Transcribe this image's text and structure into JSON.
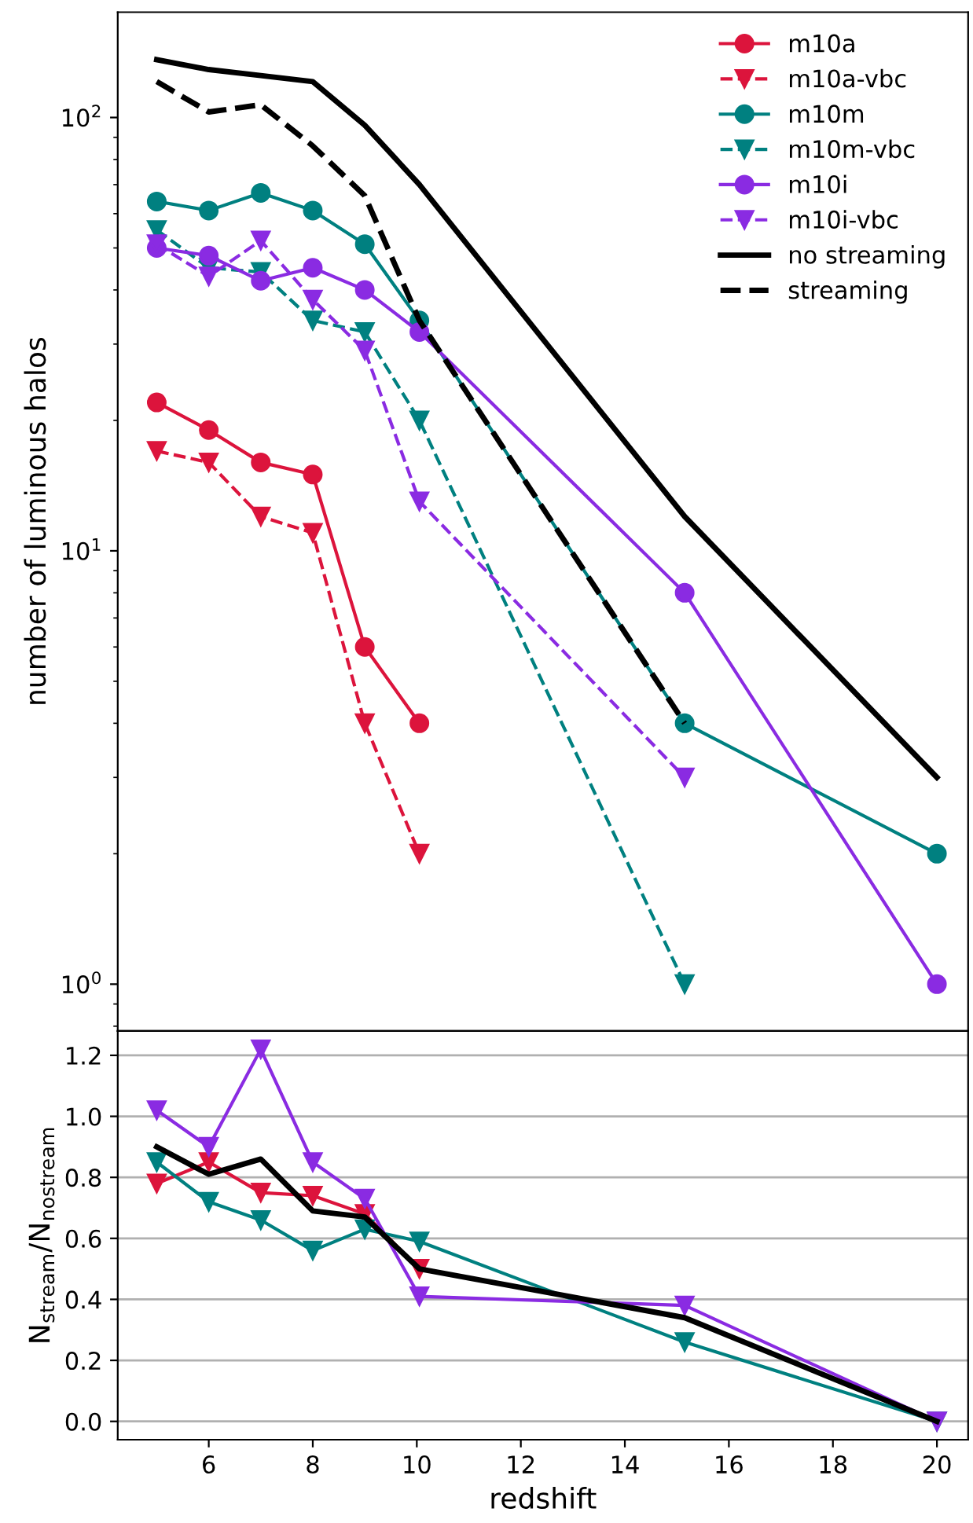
{
  "chart_data": [
    {
      "type": "line",
      "ylabel": "number of luminous halos",
      "log": "y",
      "x": [
        5,
        6,
        7,
        8,
        9,
        10.05,
        15.15,
        20
      ],
      "xlim": [
        4.25,
        20.6
      ],
      "xticks": [
        6,
        8,
        10,
        12,
        14,
        16,
        18,
        20
      ],
      "ylim": [
        0.78,
        175
      ],
      "yticks": [
        {
          "value": 1,
          "label": "10$^{0}$"
        },
        {
          "value": 10,
          "label": "10$^{1}$"
        },
        {
          "value": 100,
          "label": "10$^{2}$"
        }
      ],
      "tick_labels": "y",
      "grid": false,
      "legend": "top right",
      "series": [
        {
          "name": "m10a",
          "color": "#dc143c",
          "marker": "circle",
          "line_style": "solid",
          "values": [
            22,
            19,
            16,
            15,
            6,
            4,
            null,
            null
          ]
        },
        {
          "name": "m10a-vbc",
          "color": "#dc143c",
          "marker": "triangle",
          "line_style": "dashed",
          "values": [
            17,
            16,
            12,
            11,
            4,
            2,
            null,
            null
          ]
        },
        {
          "name": "m10m",
          "color": "#008080",
          "marker": "circle",
          "line_style": "solid",
          "values": [
            64,
            61,
            67,
            61,
            51,
            34,
            4,
            2
          ]
        },
        {
          "name": "m10m-vbc",
          "color": "#008080",
          "marker": "triangle",
          "line_style": "dashed",
          "values": [
            55,
            45,
            44,
            34,
            32,
            20,
            1,
            null
          ]
        },
        {
          "name": "m10i",
          "color": "#8a2be2",
          "marker": "circle",
          "line_style": "solid",
          "values": [
            50,
            48,
            42,
            45,
            40,
            32,
            8,
            1
          ]
        },
        {
          "name": "m10i-vbc",
          "color": "#8a2be2",
          "marker": "triangle",
          "line_style": "dashed",
          "values": [
            51,
            43,
            52,
            38,
            29,
            13,
            3,
            null
          ]
        },
        {
          "name": "no streaming",
          "color": "#000000",
          "marker": "none",
          "line_style": "solid",
          "values": [
            136,
            129,
            125,
            121,
            96,
            70,
            12,
            3
          ]
        },
        {
          "name": "streaming",
          "color": "#000000",
          "marker": "none",
          "line_style": "dashed",
          "values": [
            121,
            103,
            107,
            86,
            66,
            34,
            4,
            null
          ]
        }
      ]
    },
    {
      "type": "line",
      "xlabel": "redshift",
      "ylabel": "N$_{stream}$/N$_{nostream}$",
      "x": [
        5,
        6,
        7,
        8,
        9,
        10.05,
        15.15,
        20
      ],
      "xlim": [
        4.25,
        20.6
      ],
      "xticks": [
        6,
        8,
        10,
        12,
        14,
        16,
        18,
        20
      ],
      "ylim": [
        -0.06,
        1.28
      ],
      "yticks": [
        {
          "value": 0,
          "label": "0.0"
        },
        0.2,
        0.4,
        0.6,
        0.8,
        {
          "value": 1,
          "label": "1.0"
        },
        1.2
      ],
      "grid": "y",
      "legend": false,
      "series": [
        {
          "color": "#dc143c",
          "marker": "triangle",
          "line_style": "solid",
          "values": [
            0.78,
            0.85,
            0.75,
            0.74,
            0.68,
            0.5,
            null,
            null
          ]
        },
        {
          "color": "#008080",
          "marker": "triangle",
          "line_style": "solid",
          "values": [
            0.85,
            0.72,
            0.66,
            0.56,
            0.63,
            0.59,
            0.26,
            0
          ]
        },
        {
          "color": "#8a2be2",
          "marker": "triangle",
          "line_style": "solid",
          "values": [
            1.02,
            0.9,
            1.22,
            0.85,
            0.73,
            0.41,
            0.38,
            0
          ]
        },
        {
          "color": "#000000",
          "marker": "none",
          "line_style": "solid",
          "values": [
            0.9,
            0.81,
            0.86,
            0.69,
            0.67,
            0.5,
            0.34,
            0
          ]
        }
      ]
    }
  ]
}
